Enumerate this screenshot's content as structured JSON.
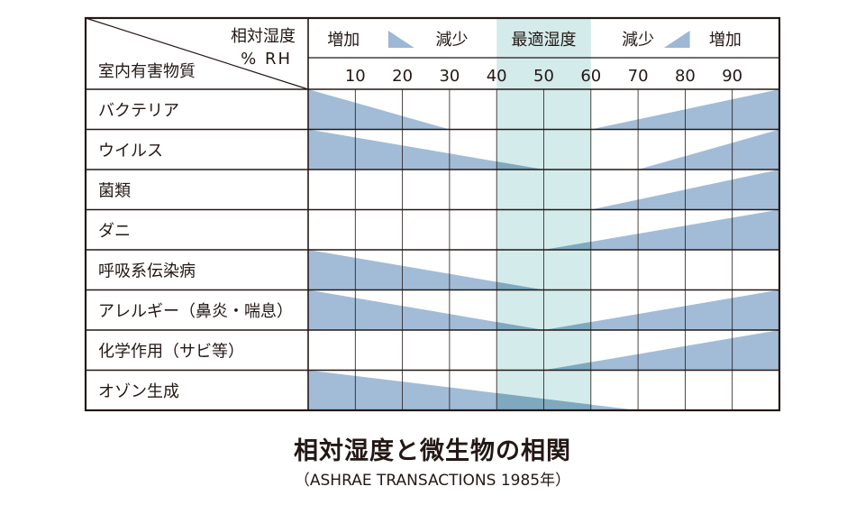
{
  "chart_data": {
    "type": "table",
    "title": "相対湿度と微生物の相関",
    "subtitle": "（ASHRAE TRANSACTIONS 1985年）",
    "header": {
      "row_label": "室内有害物質",
      "column_label": "相対湿度",
      "column_unit": "% RH",
      "increase_label": "増加",
      "decrease_label": "減少",
      "optimal_label": "最適湿度"
    },
    "x_ticks": [
      10,
      20,
      30,
      40,
      50,
      60,
      70,
      80,
      90
    ],
    "x_range": [
      0,
      100
    ],
    "optimal_range": [
      40,
      60
    ],
    "colors": {
      "effect": "#9db8d5",
      "optimal": "#d3ebea",
      "overlap": "#7fa9bf",
      "grid": "#231815"
    },
    "rows": [
      {
        "label": "バクテリア",
        "decrease_end": 30,
        "increase_start": 60
      },
      {
        "label": "ウイルス",
        "decrease_end": 50,
        "increase_start": 70
      },
      {
        "label": "菌類",
        "decrease_end": null,
        "increase_start": 60
      },
      {
        "label": "ダニ",
        "decrease_end": null,
        "increase_start": 50
      },
      {
        "label": "呼吸系伝染病",
        "decrease_end": 50,
        "increase_start": null
      },
      {
        "label": "アレルギー（鼻炎・喘息）",
        "decrease_end": 50,
        "increase_start": 50
      },
      {
        "label": "化学作用（サビ等）",
        "decrease_end": null,
        "increase_start": 50
      },
      {
        "label": "オゾン生成",
        "decrease_end": 70,
        "increase_start": null
      }
    ]
  }
}
